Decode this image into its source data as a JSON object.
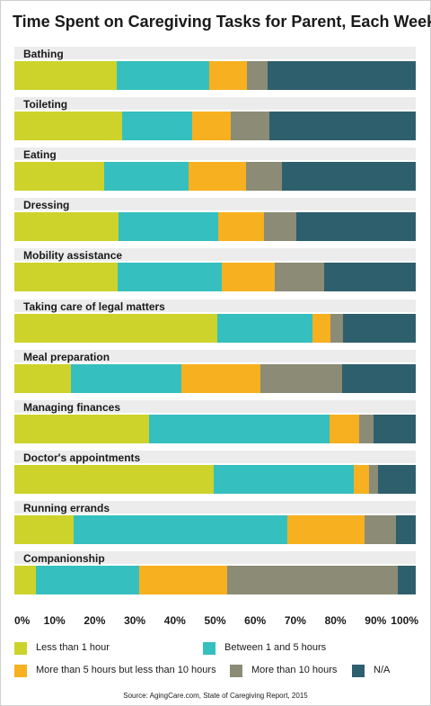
{
  "chart_data": {
    "type": "bar",
    "orientation": "horizontal",
    "stacked": true,
    "title": "Time Spent on Caregiving Tasks for Parent, Each Week",
    "xlim": [
      0,
      100
    ],
    "ticks": [
      "0%",
      "10%",
      "20%",
      "30%",
      "40%",
      "50%",
      "60%",
      "70%",
      "80%",
      "90%",
      "100%"
    ],
    "categories": [
      "Bathing",
      "Toileting",
      "Eating",
      "Dressing",
      "Mobility assistance",
      "Taking care of legal matters",
      "Meal preparation",
      "Managing finances",
      "Doctor's appointments",
      "Running errands",
      "Companionship"
    ],
    "series": [
      {
        "name": "Less than 1 hour",
        "color": "#cdd32a",
        "values": [
          25.5,
          26.8,
          22.3,
          26,
          25.7,
          50.5,
          14,
          33.5,
          49.7,
          14.7,
          5.3
        ]
      },
      {
        "name": "Between 1 and 5 hours",
        "color": "#36bfbf",
        "values": [
          23.1,
          17.4,
          21.2,
          24.7,
          25.9,
          23.7,
          27.5,
          45,
          34.9,
          53.4,
          25.9
        ]
      },
      {
        "name": "More than 5 hours but less than 10 hours",
        "color": "#f7b01f",
        "values": [
          9.4,
          9.8,
          14.3,
          11.5,
          13.2,
          4.5,
          19.8,
          7.4,
          3.8,
          19.2,
          21.8
        ]
      },
      {
        "name": "More than 10 hours",
        "color": "#8c8b76",
        "values": [
          5.1,
          9.6,
          8.9,
          8,
          12.3,
          3.1,
          20.4,
          3.6,
          2.2,
          7.8,
          42.6
        ]
      },
      {
        "name": "N/A",
        "color": "#2e5f6c",
        "values": [
          36.9,
          36.4,
          33.3,
          29.8,
          22.9,
          18.2,
          18.3,
          10.5,
          9.4,
          4.9,
          4.4
        ]
      }
    ],
    "legend_position": "bottom",
    "source": "Source: AgingCare.com, State of Caregiving Report, 2015"
  }
}
